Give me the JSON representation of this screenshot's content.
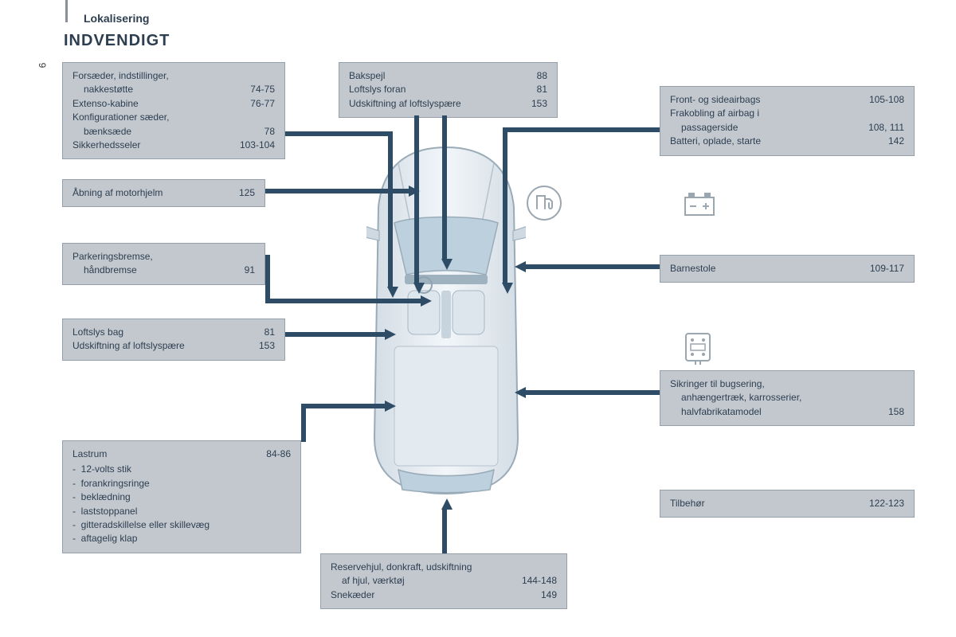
{
  "page_number": "6",
  "section_label": "Lokalisering",
  "heading": "INDVENDIGT",
  "colors": {
    "box_bg": "#c3c8cf",
    "box_border": "#96a0ab",
    "arrow": "#2f4c66",
    "text": "#2c3e50",
    "car_fill": "#e8edf2",
    "car_stroke": "#9aabb8",
    "car_glass": "#bcd0de"
  },
  "callouts": {
    "seats": {
      "rows": [
        {
          "label": "Forsæder, indstillinger,"
        },
        {
          "label": "nakkestøtte",
          "page": "74-75",
          "indent": true
        },
        {
          "label": "Extenso-kabine",
          "page": "76-77"
        },
        {
          "label": "Konfigurationer sæder,"
        },
        {
          "label": "bænksæde",
          "page": "78",
          "indent": true
        },
        {
          "label": "Sikkerhedsseler",
          "page": "103-104"
        }
      ]
    },
    "mirror": {
      "rows": [
        {
          "label": "Bakspejl",
          "page": "88"
        },
        {
          "label": "Loftslys foran",
          "page": "81"
        },
        {
          "label": "Udskiftning af loftslyspære",
          "page": "153"
        }
      ]
    },
    "airbags": {
      "rows": [
        {
          "label": "Front- og sideairbags",
          "page": "105-108"
        },
        {
          "label": "Frakobling af airbag i"
        },
        {
          "label": "passagerside",
          "page": "108, 111",
          "indent": true
        },
        {
          "label": "Batteri, oplade, starte",
          "page": "142"
        }
      ]
    },
    "bonnet": {
      "rows": [
        {
          "label": "Åbning af motorhjelm",
          "page": "125"
        }
      ]
    },
    "handbrake": {
      "rows": [
        {
          "label": "Parkeringsbremse,"
        },
        {
          "label": "håndbremse",
          "page": "91",
          "indent": true
        }
      ]
    },
    "childseats": {
      "rows": [
        {
          "label": "Barnestole",
          "page": "109-117"
        }
      ]
    },
    "rearlight": {
      "rows": [
        {
          "label": "Loftslys bag",
          "page": "81"
        },
        {
          "label": "Udskiftning af loftslyspære",
          "page": "153"
        }
      ]
    },
    "fuses": {
      "rows": [
        {
          "label": "Sikringer til bugsering,"
        },
        {
          "label": "anhængertræk, karrosserier,",
          "indent": true
        },
        {
          "label": "halvfabrikatamodel",
          "page": "158",
          "indent": true
        }
      ]
    },
    "loadspace": {
      "header": {
        "label": "Lastrum",
        "page": "84-86"
      },
      "bullets": [
        "12-volts stik",
        "forankringsringe",
        "beklædning",
        "laststoppanel",
        "gitteradskillelse eller skillevæg",
        "aftagelig klap"
      ]
    },
    "accessories": {
      "rows": [
        {
          "label": "Tilbehør",
          "page": "122-123"
        }
      ]
    },
    "sparewheel": {
      "rows": [
        {
          "label": "Reservehjul, donkraft, udskiftning"
        },
        {
          "label": "af hjul, værktøj",
          "page": "144-148",
          "indent": true
        },
        {
          "label": "Snekæder",
          "page": "149"
        }
      ]
    }
  }
}
